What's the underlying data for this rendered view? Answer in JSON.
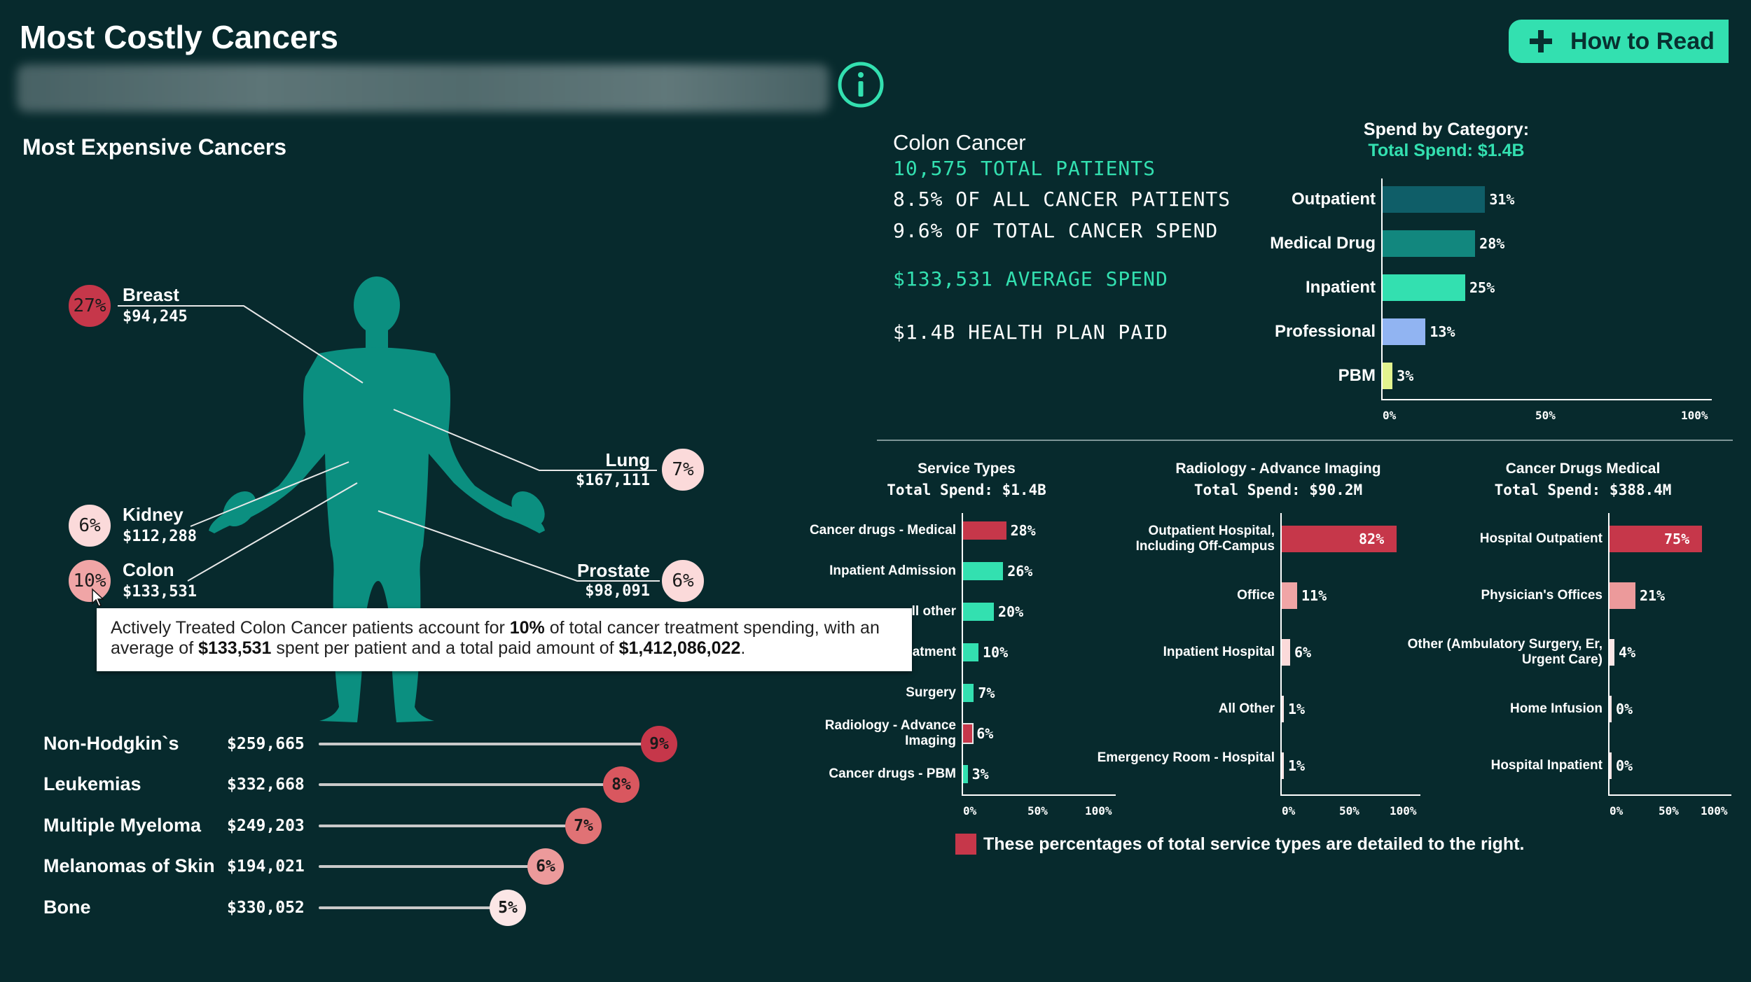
{
  "header": {
    "title": "Most Costly Cancers",
    "how_to_read": "How to Read"
  },
  "left": {
    "section_title": "Most Expensive Cancers",
    "body_callouts": [
      {
        "name": "Breast",
        "value": "$94,245",
        "pct": "27%",
        "color": "#c6374a"
      },
      {
        "name": "Kidney",
        "value": "$112,288",
        "pct": "6%",
        "color": "#fbdada"
      },
      {
        "name": "Colon",
        "value": "$133,531",
        "pct": "10%",
        "color": "#f0a5a6"
      },
      {
        "name": "Lung",
        "value": "$167,111",
        "pct": "7%",
        "color": "#fbdada"
      },
      {
        "name": "Prostate",
        "value": "$98,091",
        "pct": "6%",
        "color": "#fbdada"
      }
    ],
    "tooltip": {
      "t1": "Actively Treated Colon Cancer patients account for ",
      "b1": "10%",
      "t2": " of total cancer treatment spending, with an average of ",
      "b2": "$133,531",
      "t3": " spent per patient and a total paid amount of ",
      "b3": "$1,412,086,022",
      "t4": "."
    },
    "lollipop": [
      {
        "name": "Non-Hodgkin`s",
        "value": "$259,665",
        "pct": "9%",
        "share": 0.9,
        "color": "#c6374a"
      },
      {
        "name": "Leukemias",
        "value": "$332,668",
        "pct": "8%",
        "share": 0.8,
        "color": "#d9575f"
      },
      {
        "name": "Multiple Myeloma",
        "value": "$249,203",
        "pct": "7%",
        "share": 0.7,
        "color": "#e07275"
      },
      {
        "name": "Melanomas of Skin",
        "value": "$194,021",
        "pct": "6%",
        "share": 0.6,
        "color": "#ec9a9b"
      },
      {
        "name": "Bone",
        "value": "$330,052",
        "pct": "5%",
        "share": 0.5,
        "color": "#fbe6e6"
      }
    ]
  },
  "summary": {
    "title": "Colon Cancer",
    "patients": "10,575 TOTAL PATIENTS",
    "pct_patients": "8.5% OF ALL CANCER PATIENTS",
    "pct_spend": "9.6% OF TOTAL CANCER SPEND",
    "avg_spend": "$133,531 AVERAGE SPEND",
    "plan_paid": "$1.4B HEALTH PLAN PAID"
  },
  "legend_note": "These percentages of total service types are detailed to the right.",
  "chart_data": [
    {
      "type": "bar",
      "title": "Spend by Category:",
      "subtitle": "Total Spend: $1.4B",
      "categories": [
        "Outpatient",
        "Medical Drug",
        "Inpatient",
        "Professional",
        "PBM"
      ],
      "values": [
        31,
        28,
        25,
        13,
        3
      ],
      "labels": [
        "31%",
        "28%",
        "25%",
        "13%",
        "3%"
      ],
      "colors": [
        "#0f5e68",
        "#12877e",
        "#33e0b0",
        "#91b4f2",
        "#e3f48f"
      ],
      "ticks": [
        "0%",
        "50%",
        "100%"
      ],
      "xlim": [
        0,
        100
      ]
    },
    {
      "type": "bar",
      "title": "Service Types",
      "subtitle": "Total Spend: $1.4B",
      "categories": [
        "Cancer drugs - Medical",
        "Inpatient Admission",
        "ll other",
        "atment",
        "Surgery",
        "Radiology - Advance Imaging",
        "Cancer drugs - PBM"
      ],
      "values": [
        28,
        26,
        20,
        10,
        7,
        6,
        3
      ],
      "labels": [
        "28%",
        "26%",
        "20%",
        "10%",
        "7%",
        "6%",
        "3%"
      ],
      "colors": [
        "#c6374a",
        "#33e0b0",
        "#33e0b0",
        "#33e0b0",
        "#33e0b0",
        "#c6374a",
        "#33e0b0"
      ],
      "ticks": [
        "0%",
        "50%",
        "100%"
      ],
      "xlim": [
        0,
        100
      ]
    },
    {
      "type": "bar",
      "title": "Radiology - Advance Imaging",
      "subtitle": "Total Spend: $90.2M",
      "categories": [
        "Outpatient Hospital, Including Off-Campus",
        "Office",
        "Inpatient Hospital",
        "All Other",
        "Emergency Room - Hospital"
      ],
      "values": [
        82,
        11,
        6,
        1,
        1
      ],
      "labels": [
        "82%",
        "11%",
        "6%",
        "1%",
        "1%"
      ],
      "colors": [
        "#c6374a",
        "#f0a5a6",
        "#fbdada",
        "#fbe6e6",
        "#fbe6e6"
      ],
      "ticks": [
        "0%",
        "50%",
        "100%"
      ],
      "xlim": [
        0,
        100
      ]
    },
    {
      "type": "bar",
      "title": "Cancer Drugs Medical",
      "subtitle": "Total Spend: $388.4M",
      "categories": [
        "Hospital Outpatient",
        "Physician's Offices",
        "Other (Ambulatory Surgery, Er, Urgent Care)",
        "Home Infusion",
        "Hospital Inpatient"
      ],
      "values": [
        75,
        21,
        4,
        0,
        0
      ],
      "labels": [
        "75%",
        "21%",
        "4%",
        "0%",
        "0%"
      ],
      "colors": [
        "#c6374a",
        "#ec9a9b",
        "#fbe6e6",
        "#fbe6e6",
        "#fbe6e6"
      ],
      "ticks": [
        "0%",
        "50%",
        "100%"
      ],
      "xlim": [
        0,
        100
      ]
    }
  ]
}
